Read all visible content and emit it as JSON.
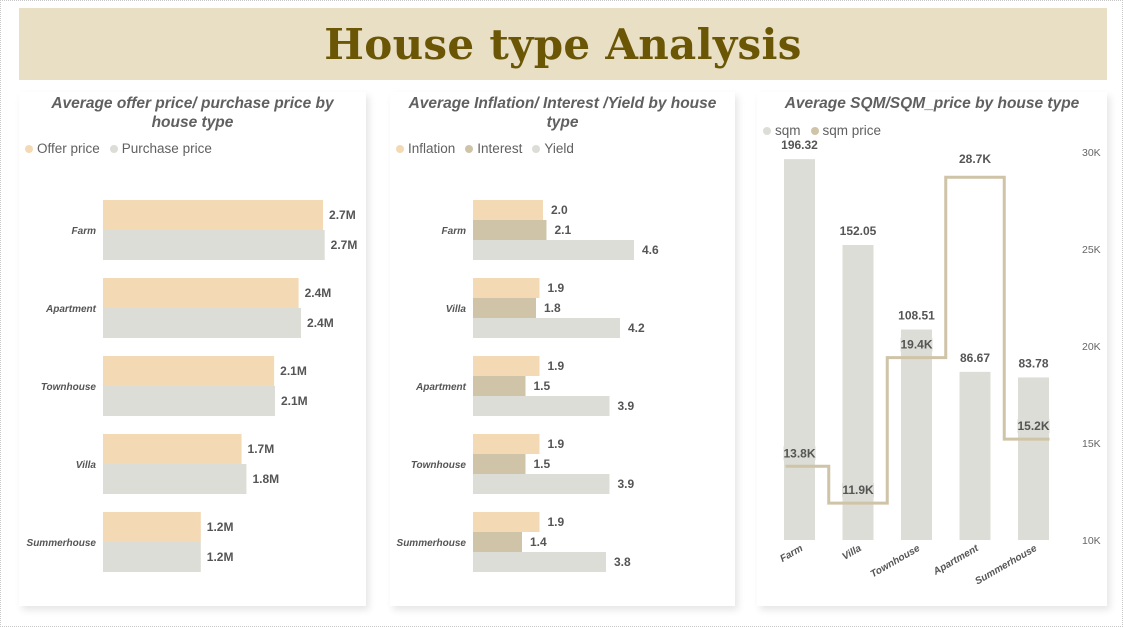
{
  "page": {
    "title": "House type Analysis"
  },
  "colors": {
    "offer": "#f4d9b5",
    "purchase": "#dcddd6",
    "inflation": "#f4d9b5",
    "interest": "#cfc4a7",
    "yield": "#dcddd6",
    "sqm": "#dcddd6",
    "sqm_price": "#cfc4a7",
    "header_bg": "#e8dfc4",
    "title_color": "#6a5604"
  },
  "chart_data": [
    {
      "type": "bar",
      "orientation": "horizontal",
      "title": "Average offer price/ purchase price by house type",
      "title_lines": [
        "Average offer price/ purchase price by",
        "house type"
      ],
      "categories": [
        "Farm",
        "Apartment",
        "Townhouse",
        "Villa",
        "Summerhouse"
      ],
      "series": [
        {
          "name": "Offer price",
          "values": [
            2.7,
            2.4,
            2.1,
            1.7,
            1.2
          ],
          "labels": [
            "2.7M",
            "2.4M",
            "2.1M",
            "1.7M",
            "1.2M"
          ]
        },
        {
          "name": "Purchase price",
          "values": [
            2.72,
            2.43,
            2.11,
            1.76,
            1.2
          ],
          "labels": [
            "2.7M",
            "2.4M",
            "2.1M",
            "1.8M",
            "1.2M"
          ]
        }
      ],
      "unit": "M",
      "grid": false,
      "legend_position": "top-left"
    },
    {
      "type": "bar",
      "orientation": "horizontal",
      "title": "Average Inflation/ Interest /Yield by house type",
      "title_lines": [
        "Average Inflation/ Interest /Yield by house",
        "type"
      ],
      "categories": [
        "Farm",
        "Villa",
        "Apartment",
        "Townhouse",
        "Summerhouse"
      ],
      "series": [
        {
          "name": "Inflation",
          "values": [
            2.0,
            1.9,
            1.9,
            1.9,
            1.9
          ],
          "labels": [
            "2.0",
            "1.9",
            "1.9",
            "1.9",
            "1.9"
          ]
        },
        {
          "name": "Interest",
          "values": [
            2.1,
            1.8,
            1.5,
            1.5,
            1.4
          ],
          "labels": [
            "2.1",
            "1.8",
            "1.5",
            "1.5",
            "1.4"
          ]
        },
        {
          "name": "Yield",
          "values": [
            4.6,
            4.2,
            3.9,
            3.9,
            3.8
          ],
          "labels": [
            "4.6",
            "4.2",
            "3.9",
            "3.9",
            "3.8"
          ]
        }
      ],
      "grid": false,
      "legend_position": "top-left"
    },
    {
      "type": "bar",
      "subtype": "combo-column-step-line",
      "title": "Average SQM/SQM_price by house type",
      "title_lines": [
        "Average SQM/SQM_price by house type"
      ],
      "categories": [
        "Farm",
        "Villa",
        "Townhouse",
        "Apartment",
        "Summerhouse"
      ],
      "series": [
        {
          "name": "sqm",
          "type": "column",
          "values": [
            196.32,
            152.05,
            108.51,
            86.67,
            83.78
          ],
          "labels": [
            "196.32",
            "152.05",
            "108.51",
            "86.67",
            "83.78"
          ]
        },
        {
          "name": "sqm price",
          "type": "step-line",
          "axis": "right",
          "values": [
            13.8,
            11.9,
            19.4,
            28.7,
            15.2
          ],
          "labels": [
            "13.8K",
            "11.9K",
            "19.4K",
            "28.7K",
            "15.2K"
          ]
        }
      ],
      "y_right_ticks": [
        "30K",
        "25K",
        "20K",
        "15K",
        "10K"
      ],
      "y_right_ylim": [
        10,
        30
      ],
      "grid": false,
      "legend_position": "top-left"
    }
  ]
}
